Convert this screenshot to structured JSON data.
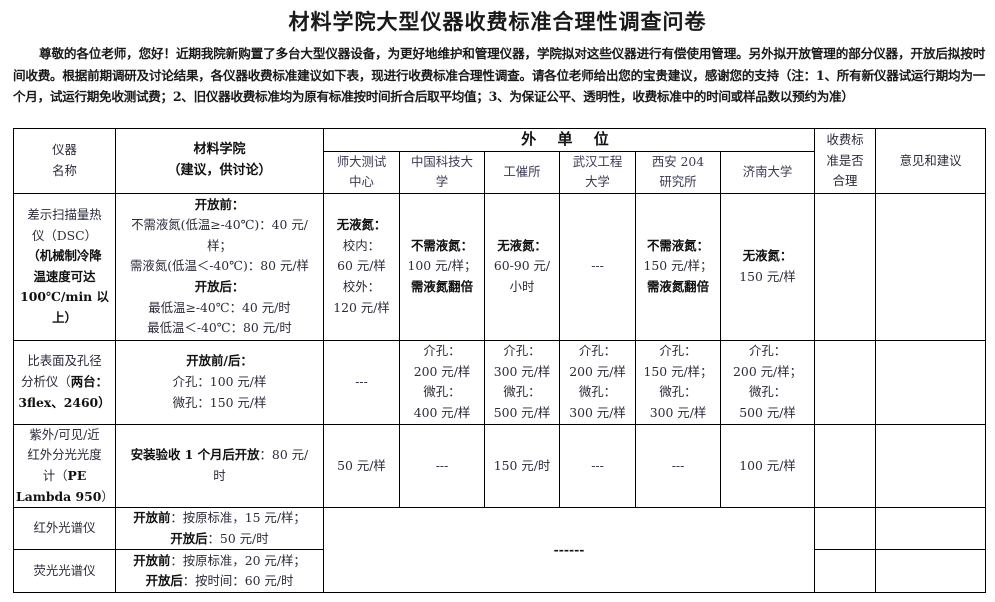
{
  "title": "材料学院大型仪器收费标准合理性调查问卷",
  "intro": "尊敬的各位老师，您好！近期我院新购置了多台大型仪器设备，为更好地维护和管理仪器，学院拟对这些仪器进行有偿使用管理。另外拟开放管理的部分仪器，开放后拟按时间收费。根据前期调研及讨论结果，各仪器收费标准建议如下表，现进行收费标准合理性调查。请各位老师给出您的宝贵建议，感谢您的支持（注：1、所有新仪器试运行期均为一个月，试运行期免收测试费；2、旧仪器收费标准均为原有标准按时间折合后取平均值；3、为保证公平、透明性，收费标准中的时间或样品数以预约为准）",
  "table": {
    "headers": {
      "instrument": [
        "仪器",
        "名称"
      ],
      "college": [
        "材料学院",
        "（建议，供讨论）"
      ],
      "external_group": "外 单 位",
      "external": [
        [
          "师大测试",
          "中心"
        ],
        [
          "中国科技大",
          "学"
        ],
        [
          "工催所"
        ],
        [
          "武汉工程",
          "大学"
        ],
        [
          "西安 204",
          "研究所"
        ],
        [
          "济南大学"
        ]
      ],
      "reasonable": [
        "收费标",
        "准是否",
        "合理"
      ],
      "comments": [
        "意见和建议"
      ]
    },
    "rows": [
      {
        "name": [
          [
            {
              "text": "差示扫描量热"
            }
          ],
          [
            {
              "text": "仪（DSC）"
            }
          ],
          [
            {
              "text": "（机械制冷降",
              "bold": true
            }
          ],
          [
            {
              "text": "温速度可达",
              "bold": true
            }
          ],
          [
            {
              "text": "100℃/min 以",
              "bold": true
            }
          ],
          [
            {
              "text": "上）",
              "bold": true
            }
          ]
        ],
        "college": [
          [
            {
              "text": "开放前：",
              "bold": true
            }
          ],
          [
            {
              "text": "不需液氮(低温≥-40℃)：40 元/"
            }
          ],
          [
            {
              "text": "样；"
            }
          ],
          [
            {
              "text": "需液氮(低温＜-40℃)：80 元/样"
            }
          ],
          [
            {
              "text": "开放后：",
              "bold": true
            }
          ],
          [
            {
              "text": "最低温≥-40℃：40 元/时"
            }
          ],
          [
            {
              "text": "最低温＜-40℃：80 元/时"
            }
          ]
        ],
        "external": [
          [
            [
              {
                "text": "无液氮：",
                "bold": true
              }
            ],
            [
              {
                "text": "校内："
              }
            ],
            [
              {
                "text": "60 元/样"
              }
            ],
            [
              {
                "text": "校外："
              }
            ],
            [
              {
                "text": "120 元/样"
              }
            ]
          ],
          [
            [
              {
                "text": "不需液氮：",
                "bold": true
              }
            ],
            [
              {
                "text": "100 元/样；"
              }
            ],
            [
              {
                "text": "需液氮翻倍",
                "bold": true
              }
            ]
          ],
          [
            [
              {
                "text": "无液氮：",
                "bold": true
              }
            ],
            [
              {
                "text": "60-90 元/"
              }
            ],
            [
              {
                "text": "小时"
              }
            ]
          ],
          [
            [
              {
                "text": "---"
              }
            ]
          ],
          [
            [
              {
                "text": "不需液氮：",
                "bold": true
              }
            ],
            [
              {
                "text": "150 元/样；"
              }
            ],
            [
              {
                "text": "需液氮翻倍",
                "bold": true
              }
            ]
          ],
          [
            [
              {
                "text": "无液氮：",
                "bold": true
              }
            ],
            [
              {
                "text": "150 元/样"
              }
            ]
          ]
        ]
      },
      {
        "name": [
          [
            {
              "text": "比表面及孔径"
            }
          ],
          [
            {
              "text": "分析仪（"
            },
            {
              "text": "两台：",
              "bold": true
            }
          ],
          [
            {
              "text": "3flex、2460）",
              "bold": true
            }
          ]
        ],
        "college": [
          [
            {
              "text": "开放前/后：",
              "bold": true
            }
          ],
          [
            {
              "text": "介孔：100 元/样"
            }
          ],
          [
            {
              "text": "微孔：150 元/样"
            }
          ]
        ],
        "external": [
          [
            [
              {
                "text": "---"
              }
            ]
          ],
          [
            [
              {
                "text": "介孔："
              }
            ],
            [
              {
                "text": "200 元/样"
              }
            ],
            [
              {
                "text": "微孔："
              }
            ],
            [
              {
                "text": "400 元/样"
              }
            ]
          ],
          [
            [
              {
                "text": "介孔："
              }
            ],
            [
              {
                "text": "300 元/样"
              }
            ],
            [
              {
                "text": "微孔："
              }
            ],
            [
              {
                "text": "500 元/样"
              }
            ]
          ],
          [
            [
              {
                "text": "介孔："
              }
            ],
            [
              {
                "text": "200 元/样"
              }
            ],
            [
              {
                "text": "微孔："
              }
            ],
            [
              {
                "text": "300 元/样"
              }
            ]
          ],
          [
            [
              {
                "text": "介孔："
              }
            ],
            [
              {
                "text": "150 元/样；"
              }
            ],
            [
              {
                "text": "微孔："
              }
            ],
            [
              {
                "text": "300 元/样"
              }
            ]
          ],
          [
            [
              {
                "text": "介孔："
              }
            ],
            [
              {
                "text": "200 元/样；"
              }
            ],
            [
              {
                "text": "微孔："
              }
            ],
            [
              {
                "text": "500 元/样"
              }
            ]
          ]
        ]
      },
      {
        "name": [
          [
            {
              "text": "紫外/可见/近"
            }
          ],
          [
            {
              "text": "红外分光光度"
            }
          ],
          [
            {
              "text": "计（"
            },
            {
              "text": "PE",
              "bold": true
            }
          ],
          [
            {
              "text": "Lambda 950",
              "bold": true
            },
            {
              "text": "）"
            }
          ]
        ],
        "college": [
          [
            {
              "text": "安装验收 1 个月后开放",
              "bold": true
            },
            {
              "text": "：80 元/"
            }
          ],
          [
            {
              "text": "时"
            }
          ]
        ],
        "external": [
          [
            [
              {
                "text": "50 元/样"
              }
            ]
          ],
          [
            [
              {
                "text": "---"
              }
            ]
          ],
          [
            [
              {
                "text": "150 元/时"
              }
            ]
          ],
          [
            [
              {
                "text": "---"
              }
            ]
          ],
          [
            [
              {
                "text": "---"
              }
            ]
          ],
          [
            [
              {
                "text": "100 元/样"
              }
            ]
          ]
        ]
      },
      {
        "name": [
          [
            {
              "text": "红外光谱仪"
            }
          ]
        ],
        "college": [
          [
            {
              "text": "开放前",
              "bold": true
            },
            {
              "text": "：按原标准，15 元/样；"
            }
          ],
          [
            {
              "text": "开放后",
              "bold": true
            },
            {
              "text": "：50 元/时"
            }
          ]
        ],
        "external_merged": "------"
      },
      {
        "name": [
          [
            {
              "text": "荧光光谱仪"
            }
          ]
        ],
        "college": [
          [
            {
              "text": "开放前",
              "bold": true
            },
            {
              "text": "：按原标准，20 元/样；"
            }
          ],
          [
            {
              "text": "开放后",
              "bold": true
            },
            {
              "text": "：按时间：60 元/时"
            }
          ]
        ]
      }
    ]
  }
}
